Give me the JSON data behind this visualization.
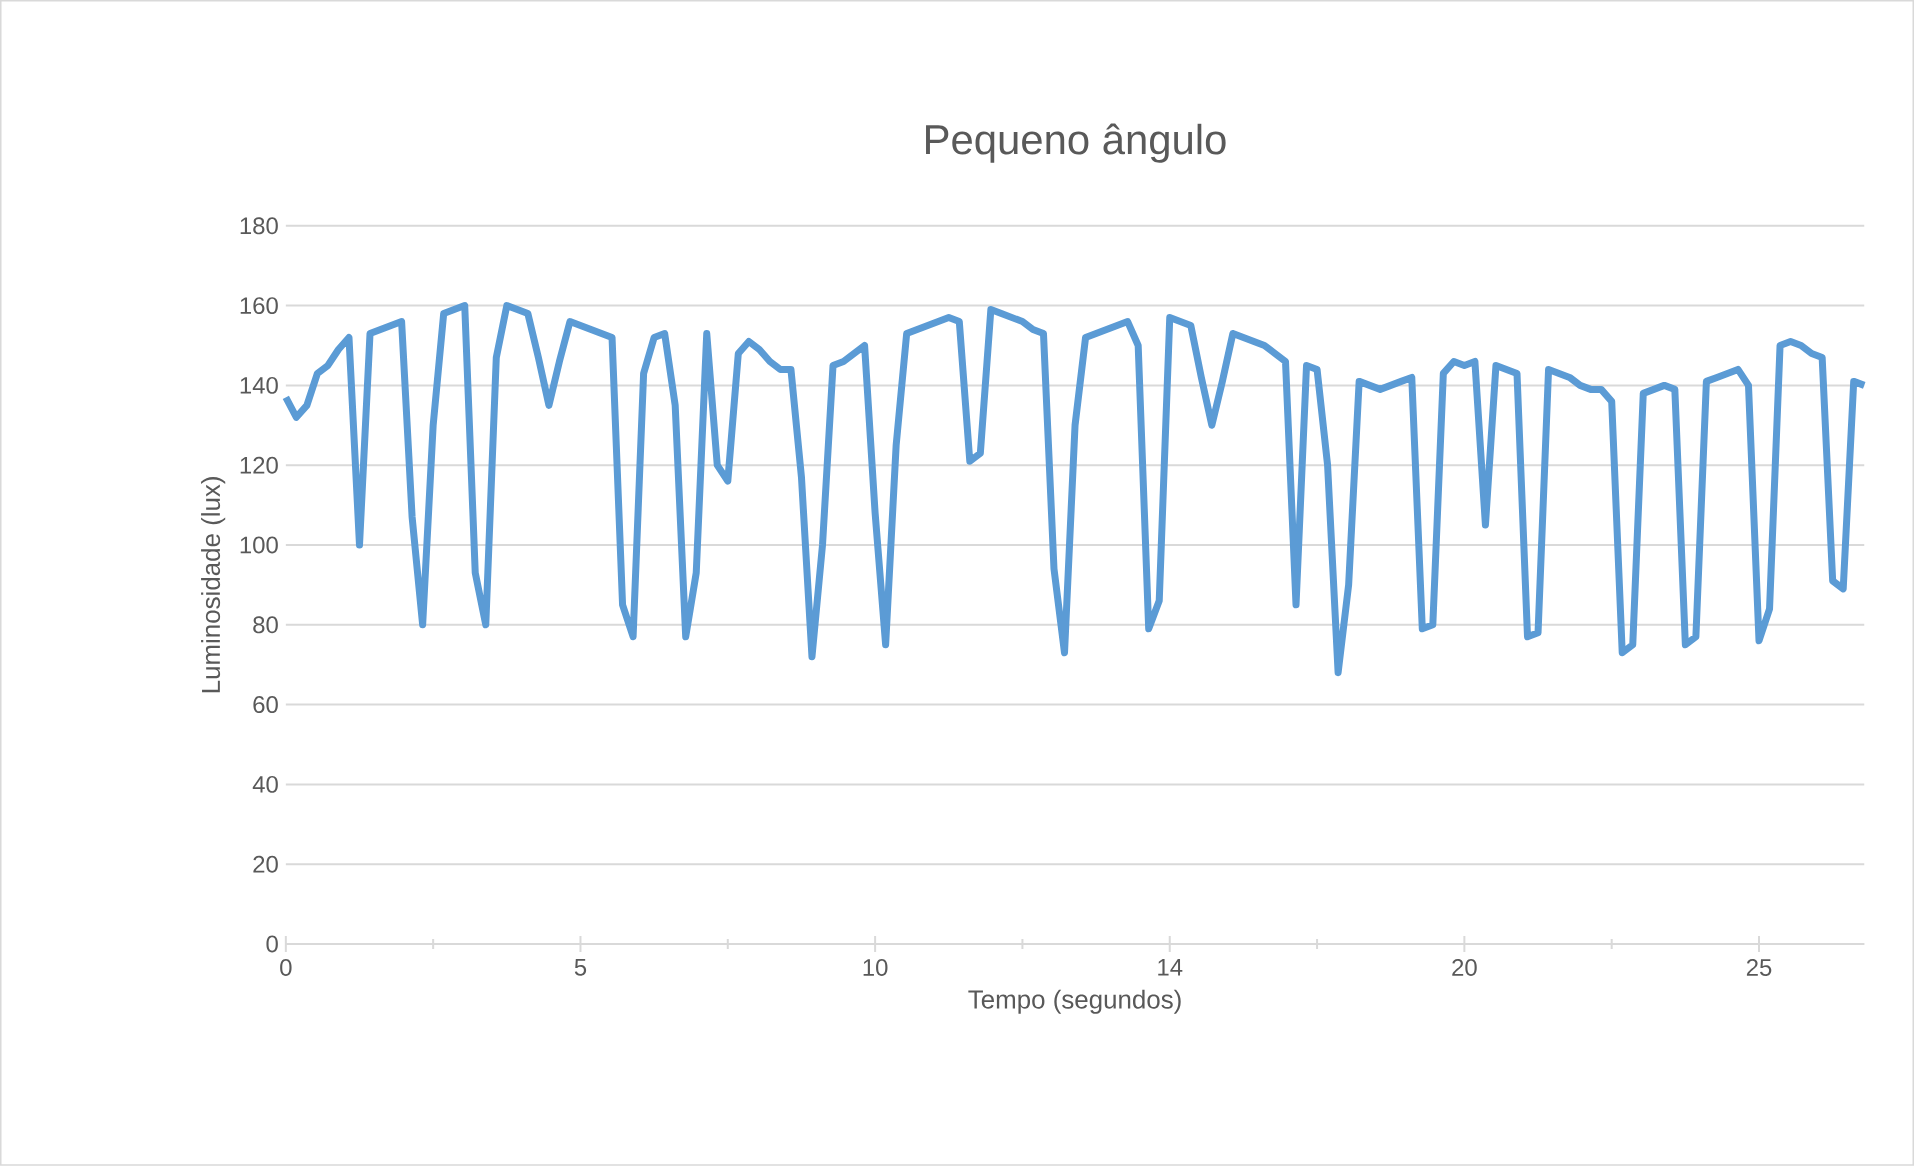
{
  "chart_data": {
    "type": "line",
    "title": "Pequeno ângulo",
    "xlabel": "Tempo (segundos)",
    "ylabel": "Luminosidade (lux)",
    "categories": [
      "0",
      null,
      null,
      null,
      null,
      null,
      null,
      null,
      null,
      null,
      null,
      null,
      null,
      null,
      null,
      null,
      null,
      null,
      null,
      null,
      null,
      null,
      null,
      null,
      null,
      null,
      null,
      null,
      "5",
      null,
      null,
      null,
      null,
      null,
      null,
      null,
      null,
      null,
      null,
      null,
      null,
      null,
      null,
      null,
      null,
      null,
      null,
      null,
      null,
      null,
      null,
      null,
      null,
      null,
      null,
      null,
      "10",
      null,
      null,
      null,
      null,
      null,
      null,
      null,
      null,
      null,
      null,
      null,
      null,
      null,
      null,
      null,
      null,
      null,
      null,
      null,
      null,
      null,
      null,
      null,
      null,
      null,
      null,
      null,
      "14",
      null,
      null,
      null,
      null,
      null,
      null,
      null,
      null,
      null,
      null,
      null,
      null,
      null,
      null,
      null,
      null,
      null,
      null,
      null,
      null,
      null,
      null,
      null,
      null,
      null,
      null,
      null,
      "20",
      null,
      null,
      null,
      null,
      null,
      null,
      null,
      null,
      null,
      null,
      null,
      null,
      null,
      null,
      null,
      null,
      null,
      null,
      null,
      null,
      null,
      null,
      null,
      null,
      null,
      null,
      null,
      "25",
      null,
      null,
      null,
      null,
      null,
      null,
      null,
      null,
      null,
      null
    ],
    "series": [
      {
        "color": "#5b9bd5",
        "values": [
          137,
          132,
          135,
          143,
          145,
          149,
          152,
          100,
          153,
          154,
          155,
          156,
          107,
          80,
          130,
          158,
          159,
          160,
          93,
          80,
          147,
          160,
          159,
          158,
          147,
          135,
          146,
          156,
          155,
          154,
          153,
          152,
          85,
          77,
          143,
          152,
          153,
          135,
          77,
          93,
          153,
          120,
          116,
          148,
          151,
          149,
          146,
          144,
          144,
          117,
          72,
          100,
          145,
          146,
          148,
          150,
          108,
          75,
          125,
          153,
          154,
          155,
          156,
          157,
          156,
          121,
          123,
          159,
          158,
          157,
          156,
          154,
          153,
          94,
          73,
          130,
          152,
          153,
          154,
          155,
          156,
          150,
          79,
          86,
          157,
          156,
          155,
          142,
          130,
          141,
          153,
          152,
          151,
          150,
          148,
          146,
          85,
          145,
          144,
          120,
          68,
          90,
          141,
          140,
          139,
          140,
          141,
          142,
          79,
          80,
          143,
          146,
          145,
          146,
          105,
          145,
          144,
          143,
          77,
          78,
          144,
          143,
          142,
          140,
          139,
          139,
          136,
          73,
          75,
          138,
          139,
          140,
          139,
          75,
          77,
          141,
          142,
          143,
          144,
          140,
          76,
          84,
          150,
          151,
          150,
          148,
          147,
          91,
          89,
          141,
          140
        ]
      }
    ],
    "ylim": [
      0,
      180
    ],
    "yticks": [
      0,
      20,
      40,
      60,
      80,
      100,
      120,
      140,
      160,
      180
    ],
    "grid": "y",
    "marker": "none",
    "line_style": "solid"
  }
}
